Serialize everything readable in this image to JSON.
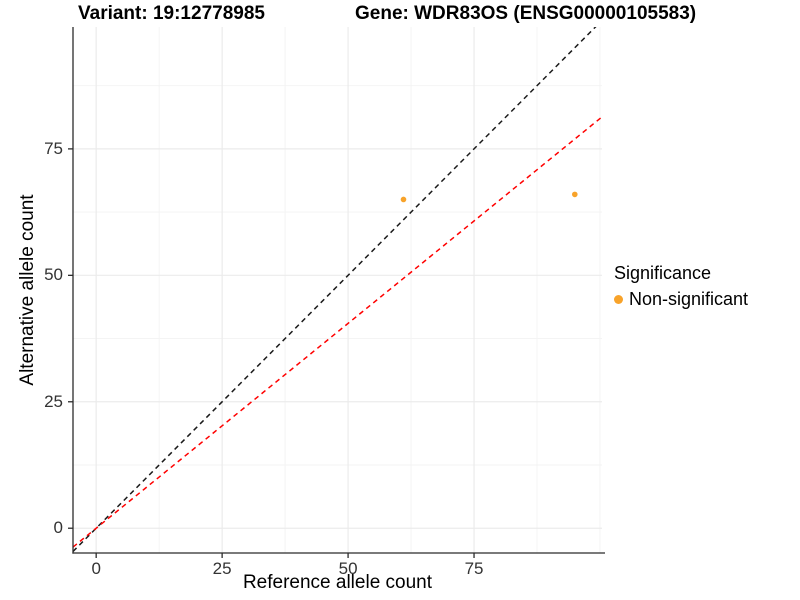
{
  "chart_data": {
    "type": "scatter",
    "titles": {
      "variant": "Variant: 19:12778985",
      "gene": "Gene: WDR83OS (ENSG00000105583)"
    },
    "xlabel": "Reference allele count",
    "ylabel": "Alternative allele count",
    "xlim": [
      -4.6,
      100.4
    ],
    "ylim": [
      -4.9,
      99.1
    ],
    "x_ticks": [
      0,
      25,
      50,
      75
    ],
    "y_ticks": [
      0,
      25,
      50,
      75
    ],
    "x_minor_ticks": [
      12.5,
      37.5,
      62.5,
      87.5,
      100
    ],
    "y_minor_ticks": [
      12.5,
      37.5,
      62.5,
      87.5
    ],
    "grid": true,
    "series": [
      {
        "name": "Non-significant",
        "color": "#F8A32A",
        "points": [
          [
            61,
            65
          ],
          [
            95,
            66
          ]
        ]
      }
    ],
    "reference_lines": [
      {
        "name": "identity",
        "slope": 1.0,
        "intercept": 0,
        "color": "#1A1A1A",
        "style": "dashed"
      },
      {
        "name": "regression",
        "slope": 0.81,
        "intercept": 0,
        "color": "#FF0000",
        "style": "dashed"
      }
    ],
    "legend": {
      "title": "Significance",
      "position": "right",
      "entries": [
        {
          "label": "Non-significant",
          "color": "#F8A32A"
        }
      ]
    },
    "colors": {
      "grid_major": "#EBEBEB",
      "grid_minor": "#F3F3F3",
      "axis": "#2B2B2B",
      "tick_text": "#333333"
    }
  }
}
